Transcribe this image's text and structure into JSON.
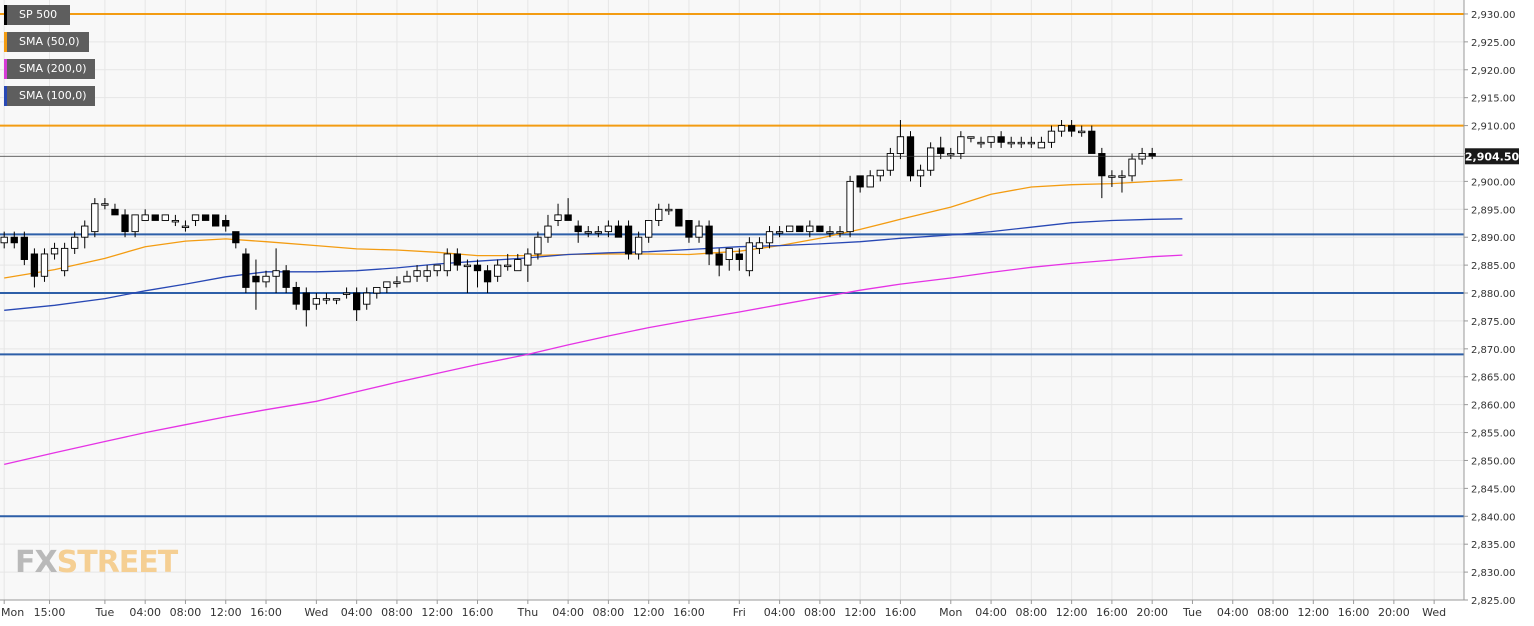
{
  "legend": [
    {
      "label": "SP 500",
      "color": "#000000"
    },
    {
      "label": "SMA (50,0)",
      "color": "#f39c12"
    },
    {
      "label": "SMA (200,0)",
      "color": "#d63bd6"
    },
    {
      "label": "SMA (100,0)",
      "color": "#2848b4"
    }
  ],
  "brand": {
    "fx": "FX",
    "street": "STREET"
  },
  "chart_data": {
    "type": "candlestick",
    "instrument": "SP 500",
    "last_price_label": "2,904.50",
    "last_price": 2904.5,
    "ylim": [
      2825,
      2932.5
    ],
    "ytick_step": 5,
    "ytick_labels": [
      "2,825.00",
      "2,830.00",
      "2,835.00",
      "2,840.00",
      "2,845.00",
      "2,850.00",
      "2,855.00",
      "2,860.00",
      "2,865.00",
      "2,870.00",
      "2,875.00",
      "2,880.00",
      "2,885.00",
      "2,890.00",
      "2,895.00",
      "2,900.00",
      "2,905.00",
      "2,910.00",
      "2,915.00",
      "2,920.00",
      "2,925.00",
      "2,930.00"
    ],
    "xtick_labels": [
      "Mon",
      "15:00",
      "Tue",
      "04:00",
      "08:00",
      "12:00",
      "16:00",
      "Wed",
      "04:00",
      "08:00",
      "12:00",
      "16:00",
      "Thu",
      "04:00",
      "08:00",
      "12:00",
      "16:00",
      "Fri",
      "04:00",
      "08:00",
      "12:00",
      "16:00",
      "Mon",
      "04:00",
      "08:00",
      "12:00",
      "16:00",
      "20:00",
      "Tue",
      "04:00",
      "08:00",
      "12:00",
      "16:00",
      "20:00",
      "Wed"
    ],
    "xtick_slot": [
      0,
      4.5,
      10,
      14,
      18,
      22,
      26,
      31,
      35,
      39,
      43,
      47,
      52,
      56,
      60,
      64,
      68,
      73,
      77,
      81,
      85,
      89,
      94,
      98,
      102,
      106,
      110,
      114,
      118,
      122,
      126,
      130,
      134,
      138,
      142
    ],
    "grid": true,
    "horizontal_levels": [
      {
        "value": 2930,
        "color": "#f39c12"
      },
      {
        "value": 2910,
        "color": "#f39c12"
      },
      {
        "value": 2890.5,
        "color": "#2d5fa8"
      },
      {
        "value": 2880,
        "color": "#2d5fa8"
      },
      {
        "value": 2869,
        "color": "#2d5fa8"
      },
      {
        "value": 2840,
        "color": "#2d5fa8"
      }
    ],
    "candles": [
      [
        2889,
        2891,
        2888,
        2890
      ],
      [
        2890,
        2891,
        2888,
        2889
      ],
      [
        2890,
        2891,
        2885,
        2886
      ],
      [
        2887,
        2888,
        2881,
        2883
      ],
      [
        2883,
        2888,
        2882,
        2887
      ],
      [
        2887,
        2889,
        2886,
        2888
      ],
      [
        2884,
        2889,
        2883,
        2888
      ],
      [
        2888,
        2891,
        2887,
        2890
      ],
      [
        2890,
        2893,
        2888,
        2892
      ],
      [
        2891,
        2897,
        2890,
        2896
      ],
      [
        2896,
        2897,
        2895,
        2896
      ],
      [
        2895,
        2896,
        2894,
        2894
      ],
      [
        2894,
        2895,
        2890,
        2891
      ],
      [
        2891,
        2894,
        2890,
        2894
      ],
      [
        2893,
        2895,
        2893,
        2894
      ],
      [
        2894,
        2894,
        2893,
        2893
      ],
      [
        2893,
        2894,
        2893,
        2894
      ],
      [
        2893,
        2894,
        2892,
        2893
      ],
      [
        2892,
        2893,
        2891,
        2892
      ],
      [
        2893,
        2894,
        2892,
        2894
      ],
      [
        2894,
        2894,
        2893,
        2893
      ],
      [
        2894,
        2894,
        2892,
        2892
      ],
      [
        2893,
        2894,
        2891,
        2892
      ],
      [
        2891,
        2891,
        2888,
        2889
      ],
      [
        2887,
        2888,
        2880,
        2881
      ],
      [
        2883,
        2886,
        2877,
        2882
      ],
      [
        2882,
        2884,
        2881,
        2883
      ],
      [
        2883,
        2888,
        2880,
        2884
      ],
      [
        2884,
        2885,
        2880,
        2881
      ],
      [
        2881,
        2882,
        2877,
        2878
      ],
      [
        2880,
        2881,
        2874,
        2877
      ],
      [
        2878,
        2880,
        2877,
        2879
      ],
      [
        2879,
        2880,
        2878,
        2879
      ],
      [
        2879,
        2879,
        2878,
        2879
      ],
      [
        2880,
        2881,
        2879,
        2880
      ],
      [
        2880,
        2881,
        2875,
        2877
      ],
      [
        2878,
        2881,
        2877,
        2880
      ],
      [
        2880,
        2881,
        2879,
        2881
      ],
      [
        2881,
        2882,
        2880,
        2882
      ],
      [
        2882,
        2883,
        2881,
        2882
      ],
      [
        2882,
        2884,
        2882,
        2883
      ],
      [
        2883,
        2885,
        2882,
        2884
      ],
      [
        2883,
        2885,
        2882,
        2884
      ],
      [
        2884,
        2885,
        2883,
        2885
      ],
      [
        2884,
        2888,
        2883,
        2887
      ],
      [
        2887,
        2888,
        2884,
        2885
      ],
      [
        2885,
        2886,
        2880,
        2885
      ],
      [
        2885,
        2886,
        2881,
        2884
      ],
      [
        2884,
        2885,
        2880,
        2882
      ],
      [
        2883,
        2886,
        2882,
        2885
      ],
      [
        2885,
        2887,
        2884,
        2885
      ],
      [
        2884,
        2887,
        2884,
        2886
      ],
      [
        2885,
        2888,
        2882,
        2887
      ],
      [
        2887,
        2891,
        2886,
        2890
      ],
      [
        2890,
        2894,
        2889,
        2892
      ],
      [
        2893,
        2896,
        2892,
        2894
      ],
      [
        2894,
        2897,
        2893,
        2893
      ],
      [
        2892,
        2893,
        2889,
        2891
      ],
      [
        2891,
        2892,
        2890,
        2891
      ],
      [
        2891,
        2892,
        2890,
        2891
      ],
      [
        2891,
        2893,
        2890,
        2892
      ],
      [
        2892,
        2893,
        2890,
        2890
      ],
      [
        2892,
        2893,
        2886,
        2887
      ],
      [
        2887,
        2891,
        2886,
        2890
      ],
      [
        2890,
        2893,
        2889,
        2893
      ],
      [
        2893,
        2896,
        2892,
        2895
      ],
      [
        2895,
        2896,
        2894,
        2895
      ],
      [
        2895,
        2895,
        2892,
        2892
      ],
      [
        2893,
        2893,
        2889,
        2890
      ],
      [
        2890,
        2893,
        2889,
        2892
      ],
      [
        2892,
        2893,
        2885,
        2887
      ],
      [
        2887,
        2888,
        2883,
        2885
      ],
      [
        2886,
        2888,
        2884,
        2888
      ],
      [
        2887,
        2888,
        2884,
        2886
      ],
      [
        2884,
        2890,
        2883,
        2889
      ],
      [
        2888,
        2890,
        2887,
        2889
      ],
      [
        2889,
        2892,
        2888,
        2891
      ],
      [
        2891,
        2892,
        2890,
        2891
      ],
      [
        2891,
        2892,
        2891,
        2892
      ],
      [
        2892,
        2892,
        2891,
        2891
      ],
      [
        2891,
        2893,
        2890,
        2892
      ],
      [
        2892,
        2892,
        2891,
        2891
      ],
      [
        2891,
        2892,
        2890,
        2891
      ],
      [
        2891,
        2892,
        2890,
        2891
      ],
      [
        2891,
        2901,
        2890,
        2900
      ],
      [
        2901,
        2901,
        2898,
        2899
      ],
      [
        2899,
        2902,
        2899,
        2901
      ],
      [
        2901,
        2902,
        2900,
        2902
      ],
      [
        2902,
        2906,
        2901,
        2905
      ],
      [
        2905,
        2911,
        2904,
        2908
      ],
      [
        2908,
        2909,
        2900,
        2901
      ],
      [
        2901,
        2903,
        2899,
        2902
      ],
      [
        2902,
        2907,
        2901,
        2906
      ],
      [
        2906,
        2908,
        2904,
        2905
      ],
      [
        2905,
        2906,
        2904,
        2905
      ],
      [
        2905,
        2909,
        2904,
        2908
      ],
      [
        2908,
        2908,
        2907,
        2908
      ],
      [
        2907,
        2908,
        2906,
        2907
      ],
      [
        2907,
        2908,
        2906,
        2908
      ],
      [
        2908,
        2909,
        2906,
        2907
      ],
      [
        2907,
        2908,
        2906,
        2907
      ],
      [
        2907,
        2908,
        2906,
        2907
      ],
      [
        2907,
        2908,
        2906,
        2907
      ],
      [
        2906,
        2908,
        2906,
        2907
      ],
      [
        2907,
        2910,
        2906,
        2909
      ],
      [
        2909,
        2911,
        2908,
        2910
      ],
      [
        2910,
        2911,
        2908,
        2909
      ],
      [
        2909,
        2910,
        2908,
        2909
      ],
      [
        2909,
        2910,
        2905,
        2905
      ],
      [
        2905,
        2906,
        2897,
        2901
      ],
      [
        2901,
        2902,
        2899,
        2901
      ],
      [
        2901,
        2902,
        2898,
        2901
      ],
      [
        2901,
        2905,
        2900,
        2904
      ],
      [
        2904,
        2906,
        2903,
        2905
      ],
      [
        2905,
        2906,
        2904,
        2904.5
      ]
    ],
    "series": [
      {
        "name": "SMA (50,0)",
        "color": "#f39c12",
        "points": [
          [
            0,
            2882.7
          ],
          [
            5,
            2884.2
          ],
          [
            10,
            2886.2
          ],
          [
            14,
            2888.3
          ],
          [
            18,
            2889.3
          ],
          [
            22,
            2889.7
          ],
          [
            26,
            2889.2
          ],
          [
            31,
            2888.5
          ],
          [
            35,
            2887.9
          ],
          [
            39,
            2887.7
          ],
          [
            43,
            2887.3
          ],
          [
            47,
            2886.7
          ],
          [
            52,
            2886.7
          ],
          [
            56,
            2886.9
          ],
          [
            60,
            2887.0
          ],
          [
            64,
            2887.0
          ],
          [
            68,
            2886.9
          ],
          [
            73,
            2887.5
          ],
          [
            77,
            2888.5
          ],
          [
            81,
            2889.8
          ],
          [
            85,
            2891.4
          ],
          [
            89,
            2893.2
          ],
          [
            94,
            2895.4
          ],
          [
            98,
            2897.7
          ],
          [
            102,
            2899.0
          ],
          [
            106,
            2899.4
          ],
          [
            110,
            2899.6
          ],
          [
            114,
            2900.0
          ],
          [
            117,
            2900.3
          ]
        ]
      },
      {
        "name": "SMA (100,0)",
        "color": "#2848b4",
        "points": [
          [
            0,
            2876.9
          ],
          [
            5,
            2877.8
          ],
          [
            10,
            2879.0
          ],
          [
            14,
            2880.4
          ],
          [
            18,
            2881.6
          ],
          [
            22,
            2882.9
          ],
          [
            26,
            2883.8
          ],
          [
            31,
            2883.8
          ],
          [
            35,
            2884.0
          ],
          [
            39,
            2884.5
          ],
          [
            43,
            2885.2
          ],
          [
            47,
            2885.7
          ],
          [
            52,
            2886.3
          ],
          [
            56,
            2886.9
          ],
          [
            60,
            2887.2
          ],
          [
            64,
            2887.4
          ],
          [
            68,
            2887.8
          ],
          [
            73,
            2888.3
          ],
          [
            77,
            2888.5
          ],
          [
            81,
            2888.8
          ],
          [
            85,
            2889.2
          ],
          [
            89,
            2889.8
          ],
          [
            94,
            2890.4
          ],
          [
            98,
            2891.0
          ],
          [
            102,
            2891.8
          ],
          [
            106,
            2892.6
          ],
          [
            110,
            2893.0
          ],
          [
            114,
            2893.2
          ],
          [
            117,
            2893.3
          ]
        ]
      },
      {
        "name": "SMA (200,0)",
        "color": "#e533e5",
        "points": [
          [
            0,
            2849.3
          ],
          [
            5,
            2851.4
          ],
          [
            10,
            2853.4
          ],
          [
            14,
            2855.0
          ],
          [
            18,
            2856.4
          ],
          [
            22,
            2857.8
          ],
          [
            26,
            2859.1
          ],
          [
            31,
            2860.6
          ],
          [
            35,
            2862.3
          ],
          [
            39,
            2864.0
          ],
          [
            43,
            2865.6
          ],
          [
            47,
            2867.2
          ],
          [
            52,
            2869.0
          ],
          [
            56,
            2870.7
          ],
          [
            60,
            2872.3
          ],
          [
            64,
            2873.8
          ],
          [
            68,
            2875.1
          ],
          [
            73,
            2876.6
          ],
          [
            77,
            2877.9
          ],
          [
            81,
            2879.2
          ],
          [
            85,
            2880.5
          ],
          [
            89,
            2881.6
          ],
          [
            94,
            2882.7
          ],
          [
            98,
            2883.7
          ],
          [
            102,
            2884.6
          ],
          [
            106,
            2885.3
          ],
          [
            110,
            2885.9
          ],
          [
            114,
            2886.5
          ],
          [
            117,
            2886.8
          ]
        ]
      }
    ]
  }
}
